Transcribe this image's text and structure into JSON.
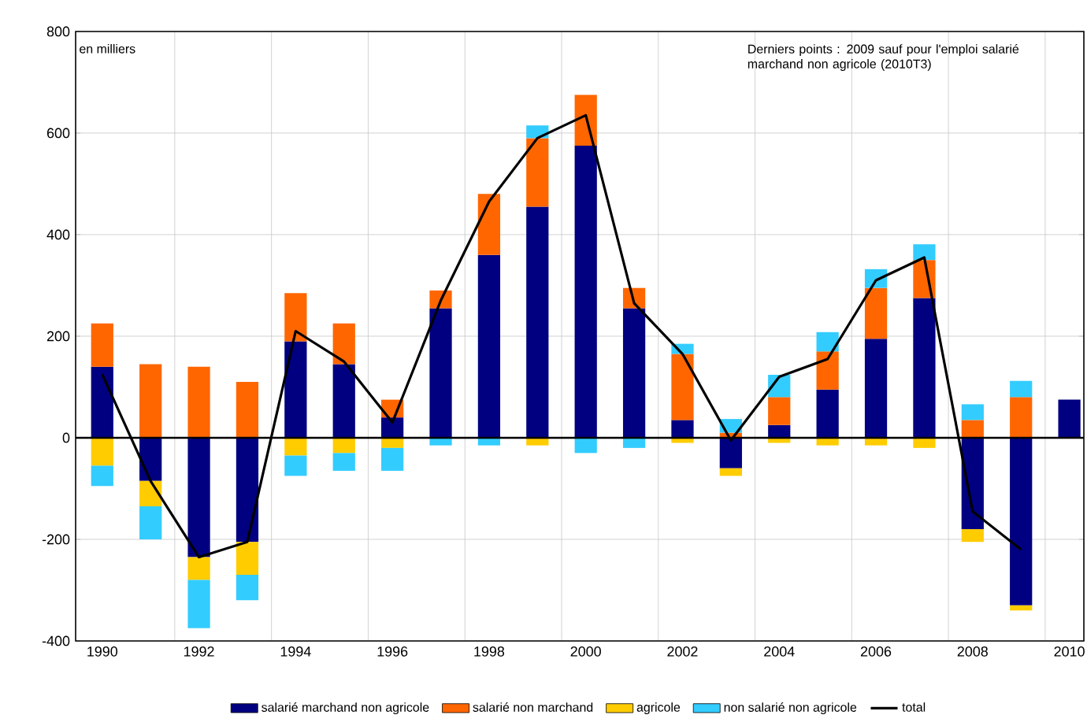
{
  "chart_data": {
    "type": "bar",
    "stacked": true,
    "categories": [
      "1990",
      null,
      "1992",
      null,
      "1994",
      null,
      "1996",
      null,
      "1998",
      null,
      "2000",
      null,
      "2002",
      null,
      "2004",
      null,
      "2006",
      null,
      "2008",
      null,
      "2010"
    ],
    "series": [
      {
        "name": "salarié marchand non agricole",
        "color": "#000080",
        "values": [
          140,
          -85,
          -235,
          -205,
          190,
          145,
          40,
          255,
          360,
          455,
          575,
          255,
          35,
          -60,
          25,
          95,
          195,
          275,
          -180,
          -330,
          75
        ]
      },
      {
        "name": "salarié non marchand",
        "color": "#ff6600",
        "values": [
          85,
          145,
          140,
          110,
          95,
          80,
          35,
          35,
          120,
          135,
          100,
          40,
          130,
          10,
          55,
          75,
          100,
          75,
          35,
          80,
          null
        ]
      },
      {
        "name": "agricole",
        "color": "#ffcc00",
        "values": [
          -55,
          -50,
          -45,
          -65,
          -35,
          -30,
          -20,
          0,
          0,
          -15,
          0,
          0,
          -10,
          -15,
          -10,
          -15,
          -15,
          -20,
          -25,
          -10,
          null
        ]
      },
      {
        "name": "non salarié non agricole",
        "color": "#33ccff",
        "values": [
          -40,
          -65,
          -95,
          -50,
          -40,
          -35,
          -45,
          -15,
          -15,
          25,
          -30,
          -20,
          20,
          27,
          44,
          38,
          37,
          31,
          31,
          32,
          null
        ]
      },
      {
        "name": "total",
        "type": "line",
        "color": "#000000",
        "values": [
          125,
          -85,
          -235,
          -205,
          210,
          150,
          30,
          270,
          465,
          590,
          635,
          265,
          165,
          -5,
          120,
          155,
          310,
          355,
          -145,
          -220,
          null
        ]
      }
    ],
    "ylim": [
      -400,
      800
    ],
    "yticks": [
      -400,
      -200,
      0,
      200,
      400,
      600,
      800
    ],
    "grid": true,
    "legend": "bottom",
    "annotations": [
      "en milliers",
      "Derniers points : 2009 sauf pour l'emploi salarié marchand non agricole (2010T3)"
    ]
  }
}
